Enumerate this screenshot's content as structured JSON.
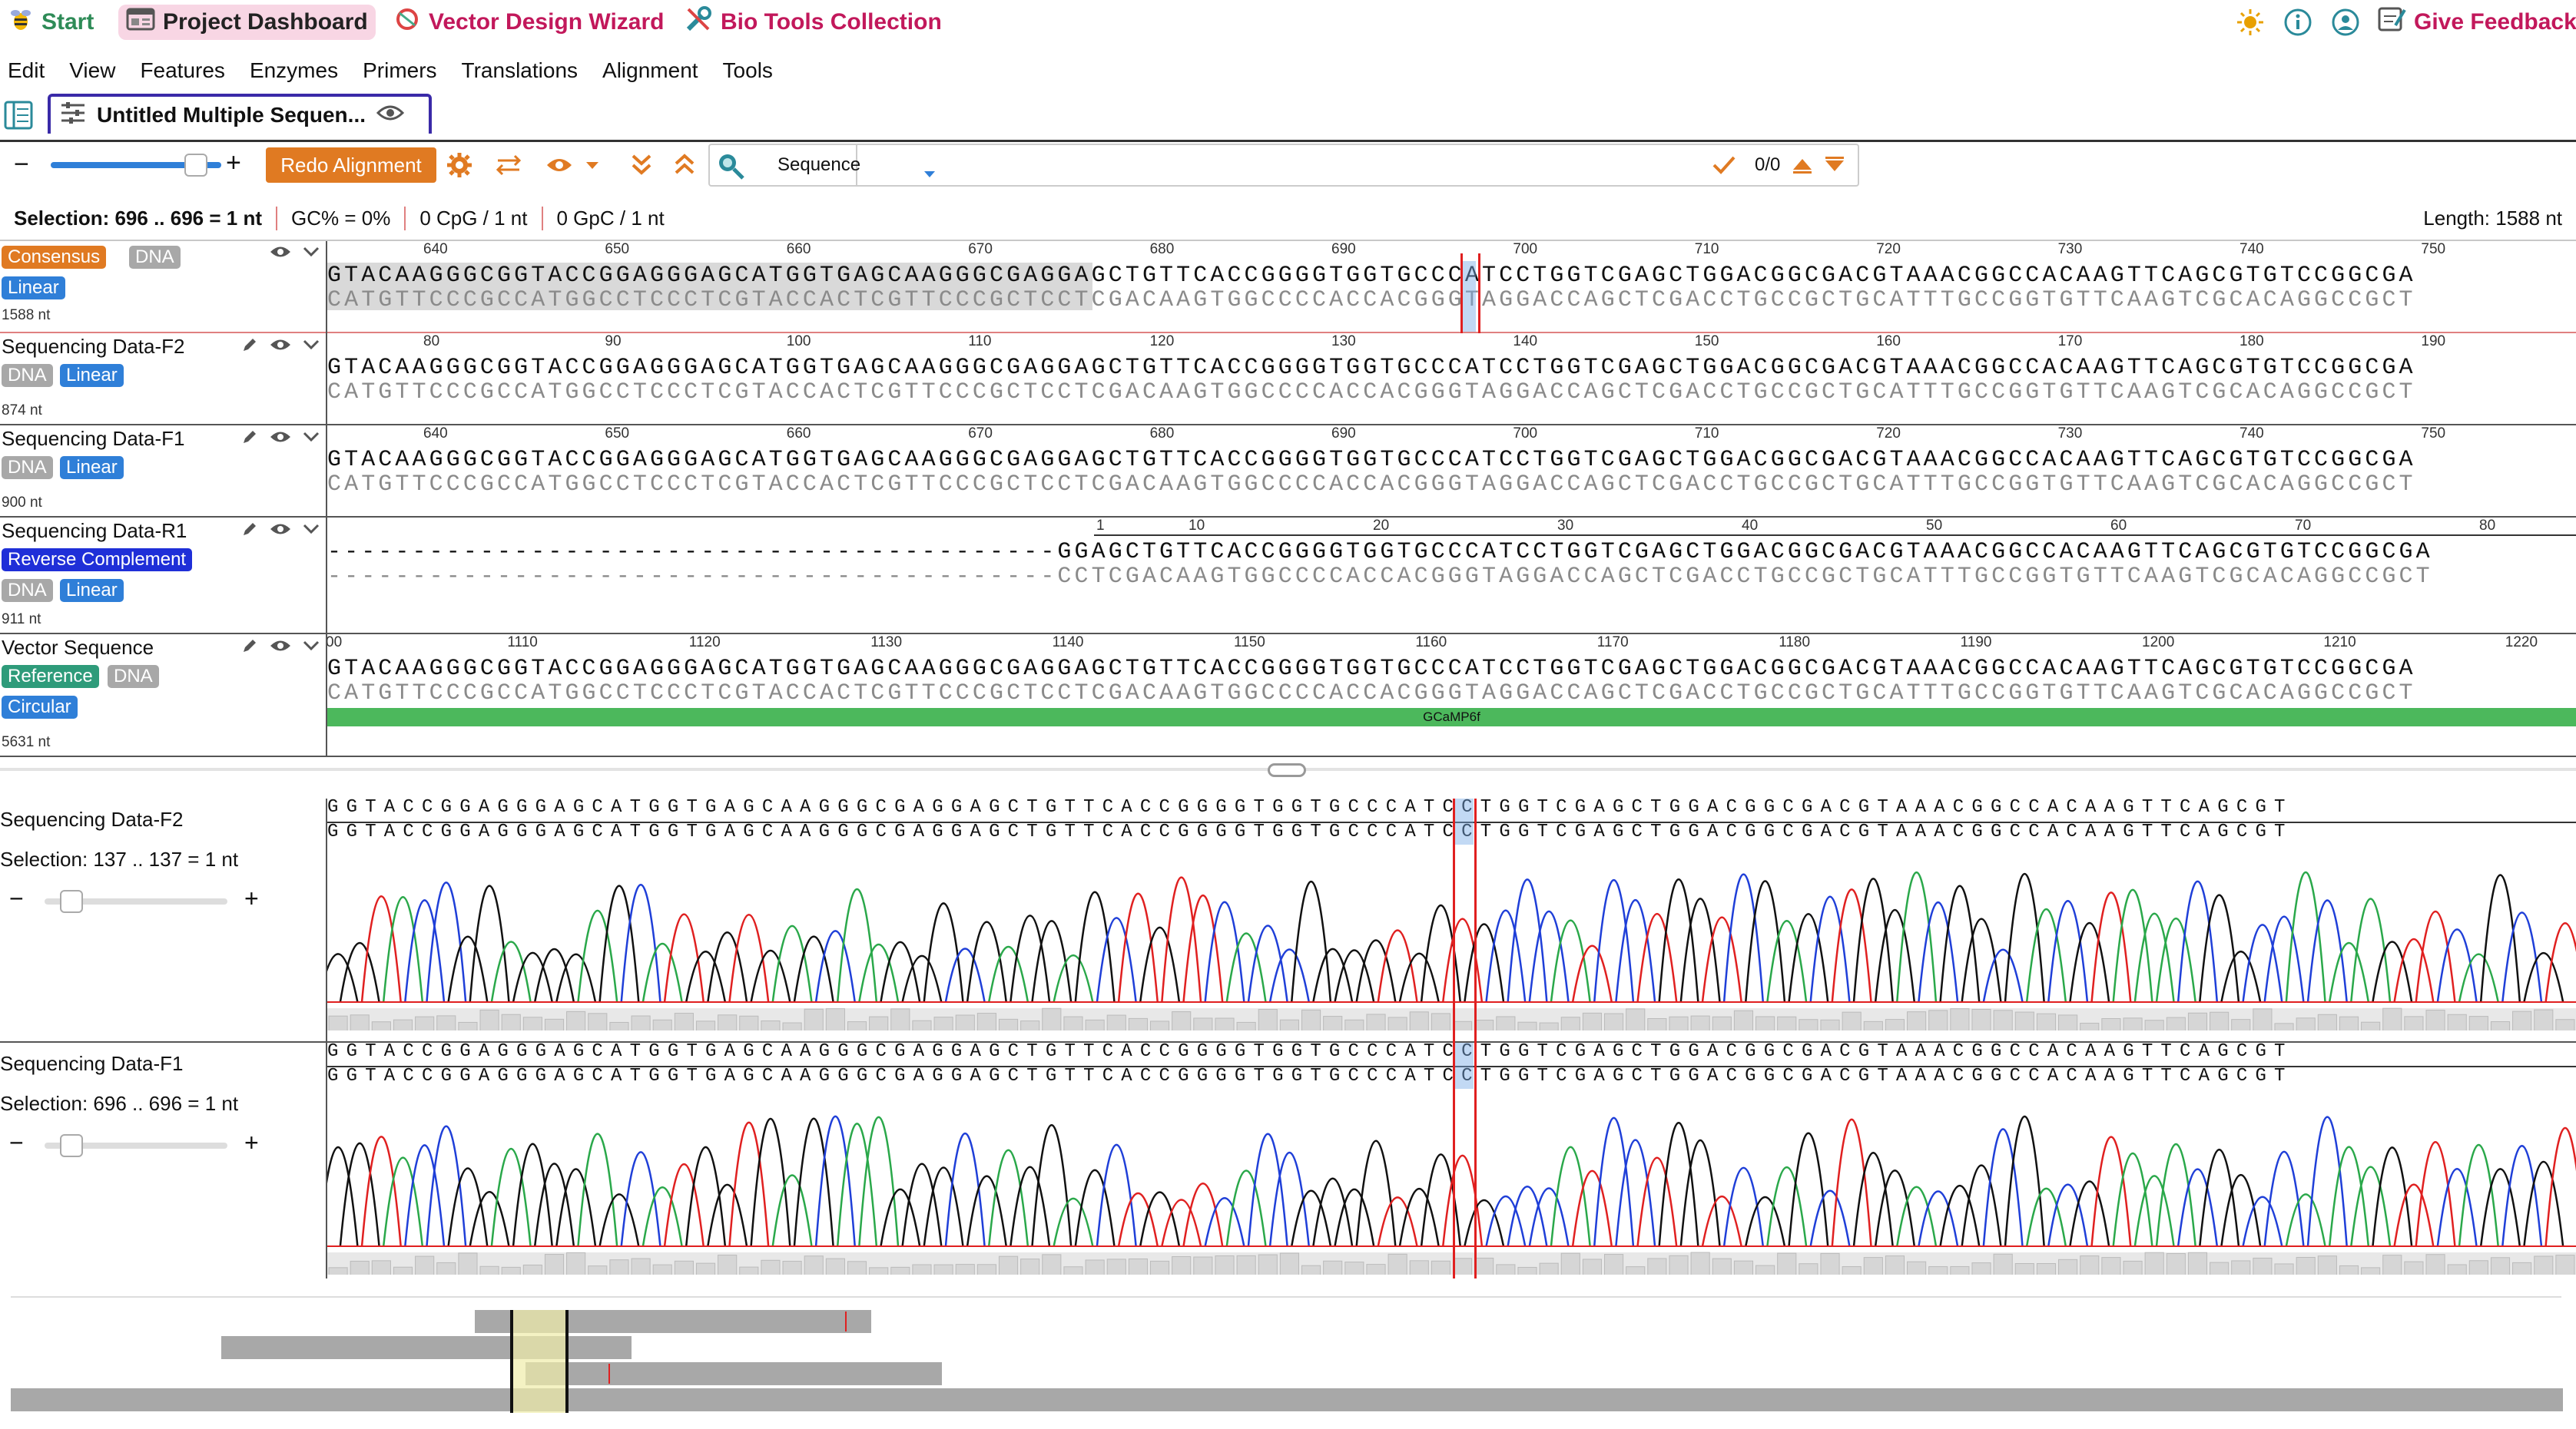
{
  "topbar": {
    "start": "Start",
    "dashboard": "Project Dashboard",
    "vector_wizard": "Vector Design Wizard",
    "bio_tools": "Bio Tools Collection",
    "feedback": "Give Feedback",
    "icons": [
      "sun-icon",
      "info-icon",
      "user-icon",
      "feedback-icon"
    ]
  },
  "menu": [
    "Edit",
    "View",
    "Features",
    "Enzymes",
    "Primers",
    "Translations",
    "Alignment",
    "Tools"
  ],
  "tab": {
    "title": "Untitled Multiple Sequen..."
  },
  "toolbar": {
    "minus": "−",
    "plus": "+",
    "zoom": 0.85,
    "redo": "Redo Alignment",
    "search_mode": "Sequence",
    "search_value": "",
    "match_count": "0/0"
  },
  "status": {
    "selection": "Selection: 696 .. 696 = 1 nt",
    "gc": "GC% = 0%",
    "cpg": "0 CpG / 1 nt",
    "gpc": "0 GpC / 1 nt",
    "length": "Length: 1588 nt"
  },
  "rows": [
    {
      "name": "Consensus",
      "tags": [
        "Linear"
      ],
      "type_tag": "DNA",
      "nt": "1588 nt",
      "ticks": [
        "640",
        "650",
        "660",
        "670",
        "680",
        "690",
        "700",
        "710",
        "720",
        "730",
        "740",
        "750"
      ],
      "top": "GTACAAGGGCGGTACCGGAGGGAGCATGGTGAGCAAGGGCGAGGAGCTGTTCACCGGGGTGGTGCCCATCCTGGTCGAGCTGGACGGCGACGTAAACGGCCACAAGTTCAGCGTGTCCGGCGA",
      "bottom": "CATGTTCCCGCCATGGCCTCCCTCGTACCACTCGTTCCCGCTCCTCGACAAGTGGCCCCACCACGGGTAGGACCAGCTCGACCTGCCGCTGCATTTGCCGGTGTTCAAGTCGCACAGGCCGCT"
    },
    {
      "name": "Sequencing Data-F2",
      "tags": [
        "DNA",
        "Linear"
      ],
      "nt": "874 nt",
      "ticks": [
        "80",
        "90",
        "100",
        "110",
        "120",
        "130",
        "140",
        "150",
        "160",
        "170",
        "180",
        "190"
      ],
      "top": "GTACAAGGGCGGTACCGGAGGGAGCATGGTGAGCAAGGGCGAGGAGCTGTTCACCGGGGTGGTGCCCATCCTGGTCGAGCTGGACGGCGACGTAAACGGCCACAAGTTCAGCGTGTCCGGCGA",
      "bottom": "CATGTTCCCGCCATGGCCTCCCTCGTACCACTCGTTCCCGCTCCTCGACAAGTGGCCCCACCACGGGTAGGACCAGCTCGACCTGCCGCTGCATTTGCCGGTGTTCAAGTCGCACAGGCCGCT"
    },
    {
      "name": "Sequencing Data-F1",
      "tags": [
        "DNA",
        "Linear"
      ],
      "nt": "900 nt",
      "ticks": [
        "640",
        "650",
        "660",
        "670",
        "680",
        "690",
        "700",
        "710",
        "720",
        "730",
        "740",
        "750"
      ],
      "top": "GTACAAGGGCGGTACCGGAGGGAGCATGGTGAGCAAGGGCGAGGAGCTGTTCACCGGGGTGGTGCCCATCCTGGTCGAGCTGGACGGCGACGTAAACGGCCACAAGTTCAGCGTGTCCGGCGA",
      "bottom": "CATGTTCCCGCCATGGCCTCCCTCGTACCACTCGTTCCCGCTCCTCGACAAGTGGCCCCACCACGGGTAGGACCAGCTCGACCTGCCGCTGCATTTGCCGGTGTTCAAGTCGCACAGGCCGCT"
    },
    {
      "name": "Sequencing Data-R1",
      "tags": [
        "Reverse Complement",
        "DNA",
        "Linear"
      ],
      "nt": "911 nt",
      "ticks": [
        "1",
        "10",
        "20",
        "30",
        "40",
        "50",
        "60",
        "70",
        "80"
      ],
      "top": "-------------------------------------------GGAGCTGTTCACCGGGGTGGTGCCCATCCTGGTCGAGCTGGACGGCGACGTAAACGGCCACAAGTTCAGCGTGTCCGGCGA",
      "bottom": "-------------------------------------------CCTCGACAAGTGGCCCCACCACGGGTAGGACCAGCTCGACCTGCCGCTGCATTTGCCGGTGTTCAAGTCGCACAGGCCGCT"
    },
    {
      "name": "Vector Sequence",
      "tags": [
        "Reference",
        "DNA",
        "Circular"
      ],
      "nt": "5631 nt",
      "ticks": [
        "00",
        "1110",
        "1120",
        "1130",
        "1140",
        "1150",
        "1160",
        "1170",
        "1180",
        "1190",
        "1200",
        "1210",
        "1220"
      ],
      "top": "GTACAAGGGCGGTACCGGAGGGAGCATGGTGAGCAAGGGCGAGGAGCTGTTCACCGGGGTGGTGCCCATCCTGGTCGAGCTGGACGGCGACGTAAACGGCCACAAGTTCAGCGTGTCCGGCGA",
      "bottom": "CATGTTCCCGCCATGGCCTCCCTCGTACCACTCGTTCCCGCTCCTCGACAAGTGGCCCCACCACGGGTAGGACCAGCTCGACCTGCCGCTGCATTTGCCGGTGTTCAAGTCGCACAGGCCGCT",
      "feature": "GCaMP6f",
      "feature_color": "#4cb85c"
    }
  ],
  "chromatograms": [
    {
      "name": "Sequencing Data-F2",
      "selection": "Selection: 137 .. 137 = 1 nt",
      "zoom": 0.25,
      "seq1": "GGTACCGGAGGGAGCATGGTGAGCAAGGGCGAGGAGCTGTTCACCGGGGTGGTGCCCATCCTGGTCGAGCTGGACGGCGACGTAAACGGCCACAAGTTCAGCGT",
      "seq2": "GGTACCGGAGGGAGCATGGTGAGCAAGGGCGAGGAGCTGTTCACCGGGGTGGTGCCCATCCTGGTCGAGCTGGACGGCGACGTAAACGGCCACAAGTTCAGCGT",
      "minus": "−",
      "plus": "+"
    },
    {
      "name": "Sequencing Data-F1",
      "selection": "Selection: 696 .. 696 = 1 nt",
      "zoom": 0.25,
      "seq1": "GGTACCGGAGGGAGCATGGTGAGCAAGGGCGAGGAGCTGTTCACCGGGGTGGTGCCCATCCTGGTCGAGCTGGACGGCGACGTAAACGGCCACAAGTTCAGCGT",
      "seq2": "GGTACCGGAGGGAGCATGGTGAGCAAGGGCGAGGAGCTGTTCACCGGGGTGGTGCCCATCCTGGTCGAGCTGGACGGCGACGTAAACGGCCACAAGTTCAGCGT",
      "minus": "−",
      "plus": "+"
    }
  ],
  "colors": {
    "accent": "#e07a22",
    "brand": "#c2185b",
    "cursor": "#e02020",
    "A": "#2aa84a",
    "C": "#1f3fd8",
    "G": "#111111",
    "T": "#e02020"
  }
}
